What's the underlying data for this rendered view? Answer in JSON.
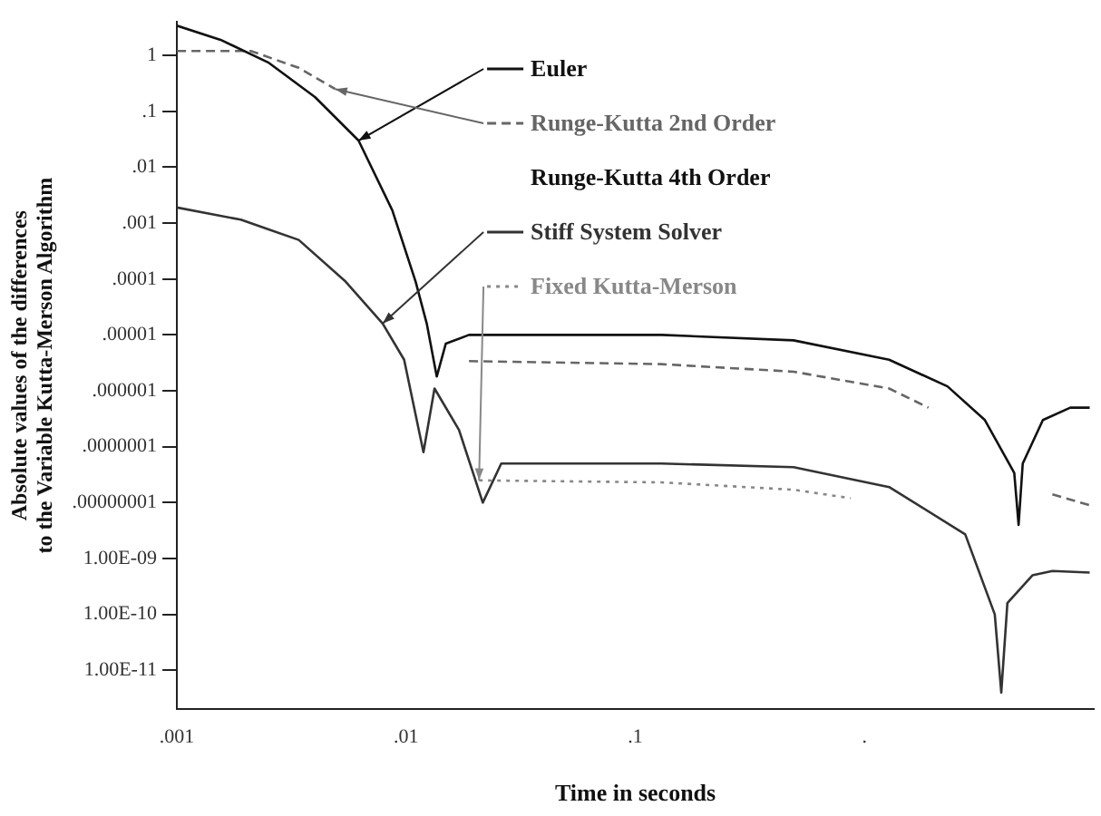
{
  "chart_data": {
    "type": "line",
    "xlabel": "Time in seconds",
    "ylabel": "Absolute values of the differences to the Variable Kutta-Merson Algorithm",
    "log": "xy",
    "grid": false,
    "legend": "top right",
    "marker": "none",
    "xlim": [
      0.001,
      10
    ],
    "xticks": [
      {
        "value": 0.001,
        "label": ".001"
      },
      {
        "value": 0.01,
        "label": ".01"
      },
      {
        "value": 0.1,
        "label": ".1"
      },
      {
        "value": 1,
        "label": "."
      }
    ],
    "ylim": [
      2e-12,
      4
    ],
    "yticks": [
      1,
      {
        "value": 0.1,
        "label": ".1"
      },
      {
        "value": 0.01,
        "label": ".01"
      },
      {
        "value": 0.001,
        "label": ".001"
      },
      {
        "value": 0.0001,
        "label": ".0001"
      },
      {
        "value": 1e-05,
        "label": ".00001"
      },
      {
        "value": 1e-06,
        "label": ".000001"
      },
      {
        "value": 1e-07,
        "label": ".0000001"
      },
      {
        "value": 1e-08,
        "label": ".00000001"
      },
      {
        "value": 1e-09,
        "label": "1.00E-09"
      },
      {
        "value": 1e-10,
        "label": "1.00E-10"
      },
      {
        "value": 1e-11,
        "label": "1.00E-11"
      }
    ],
    "annotations": [
      "Runge-Kutta 4th Order"
    ],
    "series": [
      {
        "name": "Euler",
        "color": "#111111",
        "line_style": "solid",
        "x": [
          0.001,
          0.00155,
          0.0025,
          0.004,
          0.0062,
          0.0087,
          0.011,
          0.0123,
          0.0136,
          0.0149,
          0.0188,
          0.13,
          0.49,
          1.28,
          2.3,
          3.35,
          4.5,
          4.7,
          4.9,
          6,
          7.9,
          9.6
        ],
        "values": [
          3.4,
          1.9,
          0.75,
          0.18,
          0.03,
          0.0017,
          9e-05,
          1.6e-05,
          1.8e-06,
          7e-06,
          1e-05,
          1e-05,
          8e-06,
          3.6e-06,
          1.2e-06,
          3e-07,
          3.4e-08,
          4e-09,
          5e-08,
          3e-07,
          5e-07,
          5e-07
        ]
      },
      {
        "name": "Runge-Kutta 2nd Order",
        "color": "#666666",
        "line_style": "dashed",
        "x": [
          0.001,
          0.0021,
          0.0034,
          0.0049,
          0.01,
          0.0188,
          0.13,
          0.49,
          1.28,
          1.9,
          4,
          6.6,
          9.6
        ],
        "values": [
          1.2,
          1.2,
          0.6,
          0.25,
          null,
          3.4e-06,
          3e-06,
          2.2e-06,
          1.1e-06,
          5e-07,
          null,
          1.4e-08,
          9e-09
        ]
      },
      {
        "name": "Stiff System Solver",
        "color": "#333333",
        "line_style": "solid",
        "x": [
          0.001,
          0.0019,
          0.0034,
          0.0054,
          0.0079,
          0.0098,
          0.0119,
          0.0133,
          0.017,
          0.0216,
          0.026,
          0.13,
          0.49,
          1.28,
          2.75,
          3.7,
          3.95,
          4.2,
          5.4,
          6.6,
          9.6
        ],
        "values": [
          0.0019,
          0.00115,
          0.0005,
          9.3e-05,
          1.6e-05,
          3.6e-06,
          8e-08,
          1.1e-06,
          2e-07,
          1e-08,
          5e-08,
          5e-08,
          4.3e-08,
          1.9e-08,
          2.7e-09,
          1e-10,
          4e-12,
          1.6e-10,
          5e-10,
          6e-10,
          5.6e-10
        ]
      },
      {
        "name": "Fixed Kutta-Merson",
        "color": "#888888",
        "line_style": "dotted",
        "x": [
          0.0208,
          0.13,
          0.49,
          0.87
        ],
        "values": [
          2.5e-08,
          2.3e-08,
          1.7e-08,
          1.2e-08
        ]
      }
    ]
  }
}
